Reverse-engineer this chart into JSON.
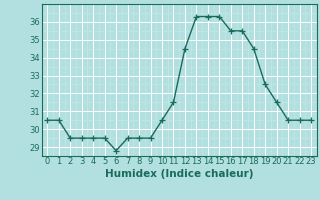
{
  "x": [
    0,
    1,
    2,
    3,
    4,
    5,
    6,
    7,
    8,
    9,
    10,
    11,
    12,
    13,
    14,
    15,
    16,
    17,
    18,
    19,
    20,
    21,
    22,
    23
  ],
  "y": [
    30.5,
    30.5,
    29.5,
    29.5,
    29.5,
    29.5,
    28.8,
    29.5,
    29.5,
    29.5,
    30.5,
    31.5,
    34.5,
    36.3,
    36.3,
    36.3,
    35.5,
    35.5,
    34.5,
    32.5,
    31.5,
    30.5,
    30.5,
    30.5
  ],
  "xlabel": "Humidex (Indice chaleur)",
  "line_color": "#1a6b5a",
  "bg_color": "#b2e0e0",
  "grid_major_color": "#ffffff",
  "grid_minor_color": "#c8e8e8",
  "ylim": [
    28.5,
    37.0
  ],
  "yticks": [
    29,
    30,
    31,
    32,
    33,
    34,
    35,
    36
  ],
  "xlim": [
    -0.5,
    23.5
  ],
  "xticks": [
    0,
    1,
    2,
    3,
    4,
    5,
    6,
    7,
    8,
    9,
    10,
    11,
    12,
    13,
    14,
    15,
    16,
    17,
    18,
    19,
    20,
    21,
    22,
    23
  ],
  "tick_fontsize": 6.0,
  "xlabel_fontsize": 7.5
}
